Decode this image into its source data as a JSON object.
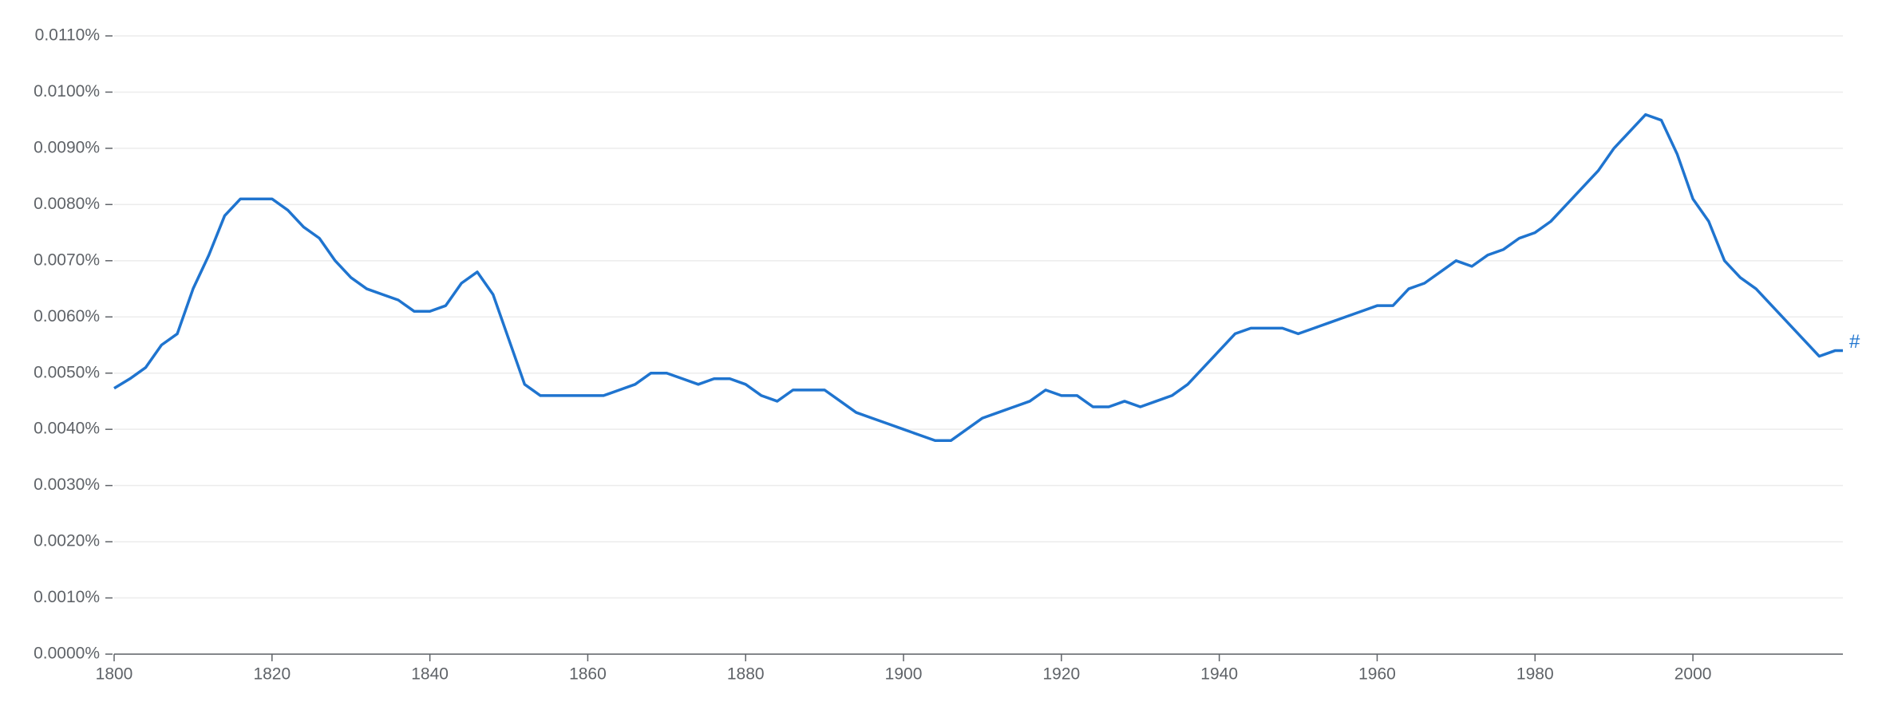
{
  "chart_data": {
    "type": "line",
    "x": [
      1800,
      1802,
      1804,
      1806,
      1808,
      1810,
      1812,
      1814,
      1816,
      1818,
      1820,
      1822,
      1824,
      1826,
      1828,
      1830,
      1832,
      1834,
      1836,
      1838,
      1840,
      1842,
      1844,
      1846,
      1848,
      1850,
      1852,
      1854,
      1856,
      1858,
      1860,
      1862,
      1864,
      1866,
      1868,
      1870,
      1872,
      1874,
      1876,
      1878,
      1880,
      1882,
      1884,
      1886,
      1888,
      1890,
      1892,
      1894,
      1896,
      1898,
      1900,
      1902,
      1904,
      1906,
      1908,
      1910,
      1912,
      1914,
      1916,
      1918,
      1920,
      1922,
      1924,
      1926,
      1928,
      1930,
      1932,
      1934,
      1936,
      1938,
      1940,
      1942,
      1944,
      1946,
      1948,
      1950,
      1952,
      1954,
      1956,
      1958,
      1960,
      1962,
      1964,
      1966,
      1968,
      1970,
      1972,
      1974,
      1976,
      1978,
      1980,
      1982,
      1984,
      1986,
      1988,
      1990,
      1992,
      1994,
      1996,
      1998,
      2000,
      2002,
      2004,
      2006,
      2008,
      2010,
      2012,
      2014,
      2016,
      2018,
      2019
    ],
    "series": [
      {
        "name": "#",
        "color": "#1f74cf",
        "values": [
          0.00473,
          0.0049,
          0.0051,
          0.0055,
          0.0057,
          0.0065,
          0.0071,
          0.0078,
          0.0081,
          0.0081,
          0.0081,
          0.0079,
          0.0076,
          0.0074,
          0.007,
          0.0067,
          0.0065,
          0.0064,
          0.0063,
          0.0061,
          0.0061,
          0.0062,
          0.0066,
          0.0068,
          0.0064,
          0.0056,
          0.0048,
          0.0046,
          0.0046,
          0.0046,
          0.0046,
          0.0046,
          0.0047,
          0.0048,
          0.005,
          0.005,
          0.0049,
          0.0048,
          0.0049,
          0.0049,
          0.0048,
          0.0046,
          0.0045,
          0.0047,
          0.0047,
          0.0047,
          0.0045,
          0.0043,
          0.0042,
          0.0041,
          0.004,
          0.0039,
          0.0038,
          0.0038,
          0.004,
          0.0042,
          0.0043,
          0.0044,
          0.0045,
          0.0047,
          0.0046,
          0.0046,
          0.0044,
          0.0044,
          0.0045,
          0.0044,
          0.0045,
          0.0046,
          0.0048,
          0.0051,
          0.0054,
          0.0057,
          0.0058,
          0.0058,
          0.0058,
          0.0057,
          0.0058,
          0.0059,
          0.006,
          0.0061,
          0.0062,
          0.0062,
          0.0065,
          0.0066,
          0.0068,
          0.007,
          0.0069,
          0.0071,
          0.0072,
          0.0074,
          0.0075,
          0.0077,
          0.008,
          0.0083,
          0.0086,
          0.009,
          0.0093,
          0.0096,
          0.0095,
          0.0089,
          0.0081,
          0.0077,
          0.007,
          0.0067,
          0.0065,
          0.0062,
          0.0059,
          0.0056,
          0.0053,
          0.0054,
          0.0054
        ]
      }
    ],
    "xlim": [
      1800,
      2019
    ],
    "xticks": [
      1800,
      1820,
      1840,
      1860,
      1880,
      1900,
      1920,
      1940,
      1960,
      1980,
      2000
    ],
    "ylim": [
      0,
      0.011
    ],
    "yticks": [
      {
        "value": 0,
        "label": "0.0000%"
      },
      {
        "value": 0.001,
        "label": "0.0010%"
      },
      {
        "value": 0.002,
        "label": "0.0020%"
      },
      {
        "value": 0.003,
        "label": "0.0030%"
      },
      {
        "value": 0.004,
        "label": "0.0040%"
      },
      {
        "value": 0.005,
        "label": "0.0050%"
      },
      {
        "value": 0.006,
        "label": "0.0060%"
      },
      {
        "value": 0.007,
        "label": "0.0070%"
      },
      {
        "value": 0.008,
        "label": "0.0080%"
      },
      {
        "value": 0.009,
        "label": "0.0090%"
      },
      {
        "value": 0.01,
        "label": "0.0100%"
      },
      {
        "value": 0.011,
        "label": "0.0110%"
      }
    ],
    "grid": true
  }
}
